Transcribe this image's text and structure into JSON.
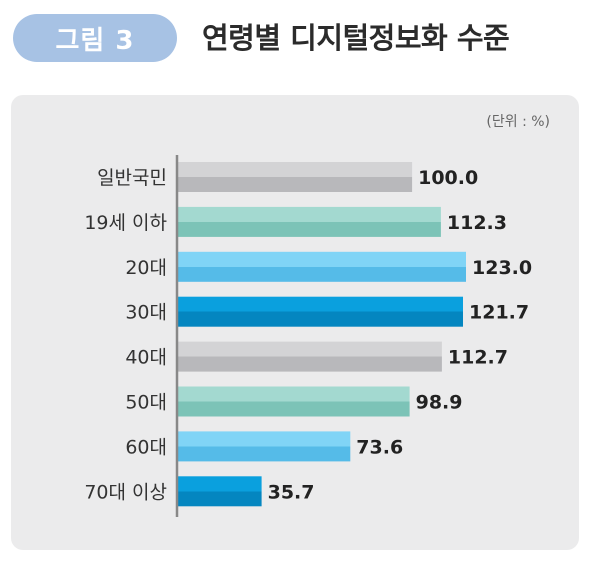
{
  "figure": {
    "label": "그림 3",
    "title": "연령별 디지털정보화 수준",
    "unit": "(단위 : %)"
  },
  "colors": {
    "badge": "#a7c2e4",
    "panel": "#ebebec",
    "gray": "#c3c3c5",
    "teal": "#8dcfc4",
    "sky": "#66c8f2",
    "blue": "#0596d4",
    "axis": "#888888"
  },
  "chart_data": {
    "type": "bar",
    "orientation": "horizontal",
    "categories": [
      "일반국민",
      "19세 이하",
      "20대",
      "30대",
      "40대",
      "50대",
      "60대",
      "70대 이상"
    ],
    "values": [
      100.0,
      112.3,
      123.0,
      121.7,
      112.7,
      98.9,
      73.6,
      35.7
    ],
    "bar_colors": [
      "gray",
      "teal",
      "sky",
      "blue",
      "gray",
      "teal",
      "sky",
      "blue"
    ],
    "data_labels": [
      "100.0",
      "112.3",
      "123.0",
      "121.7",
      "112.7",
      "98.9",
      "73.6",
      "35.7"
    ],
    "xlim": [
      0,
      123
    ],
    "grid": false
  }
}
